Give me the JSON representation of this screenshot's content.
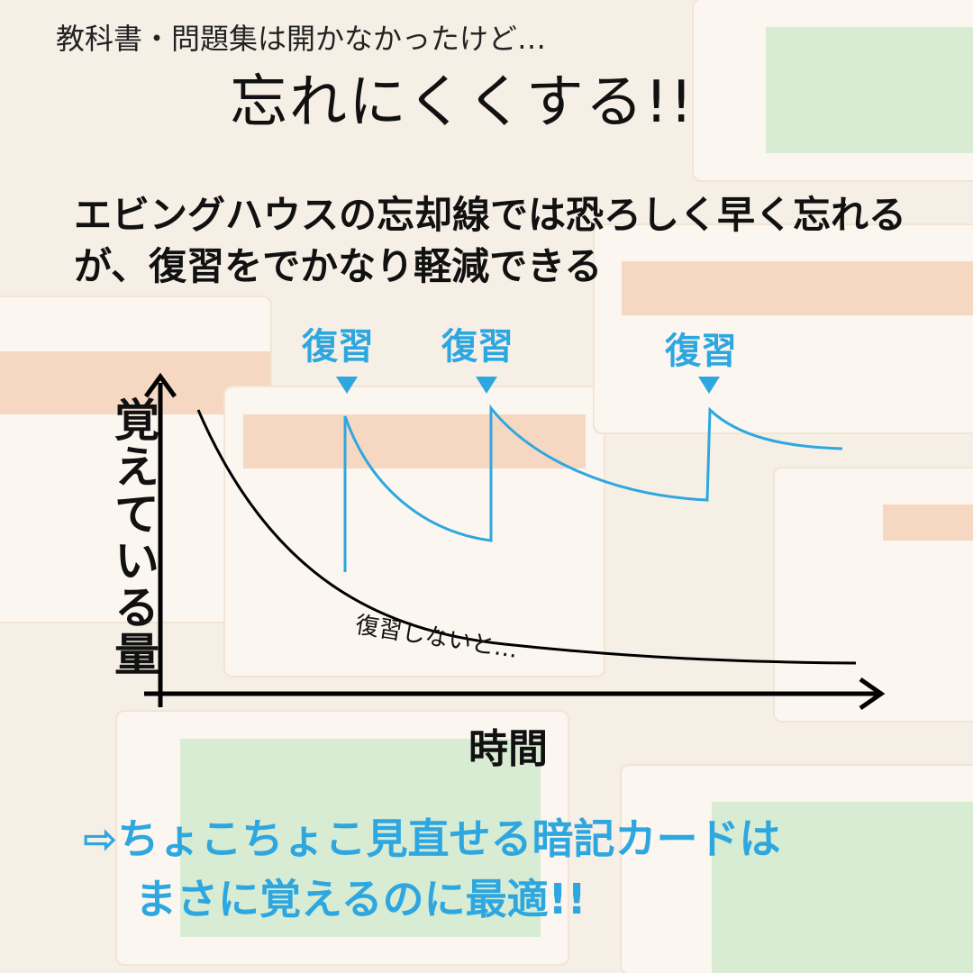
{
  "header": {
    "subtitle": "教科書・問題集は開かなかったけど…",
    "title": "忘れにくくする!!"
  },
  "description": {
    "line1": "エビングハウスの忘却線では恐ろしく早く忘れる",
    "line2": "が、復習をでかなり軽減できる"
  },
  "diagram": {
    "y_label": "覚えている量",
    "x_label": "時間",
    "review_labels": [
      "復習",
      "復習",
      "復習"
    ],
    "no_review_label": "復習しないと…",
    "colors": {
      "review_curve": "#2ea7e0",
      "forgetting_curve": "#000000"
    }
  },
  "conclusion": {
    "line1": "⇨ちょこちょこ見直せる暗記カードは",
    "line2": "まさに覚えるのに最適!!"
  }
}
